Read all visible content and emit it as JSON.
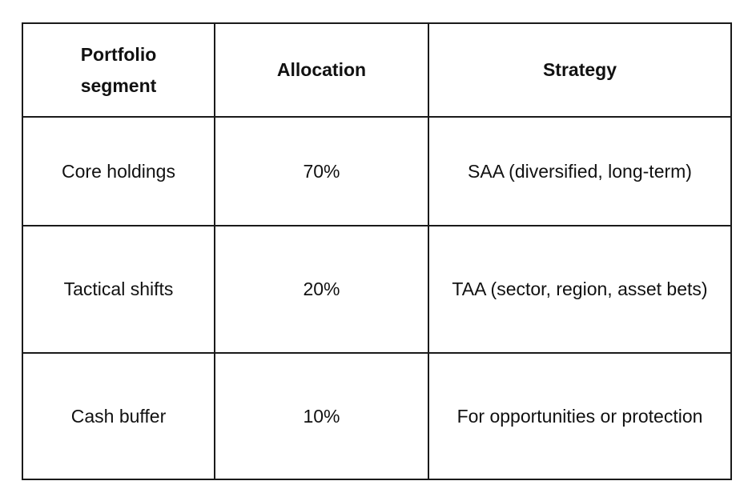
{
  "table": {
    "header": [
      "Portfolio segment",
      "Allocation",
      "Strategy"
    ],
    "rows": [
      [
        "Core holdings",
        "70%",
        "SAA (diversified, long-term)"
      ],
      [
        "Tactical shifts",
        "20%",
        "TAA (sector, region, asset bets)"
      ],
      [
        "Cash buffer",
        "10%",
        "For opportunities or protection"
      ]
    ]
  }
}
